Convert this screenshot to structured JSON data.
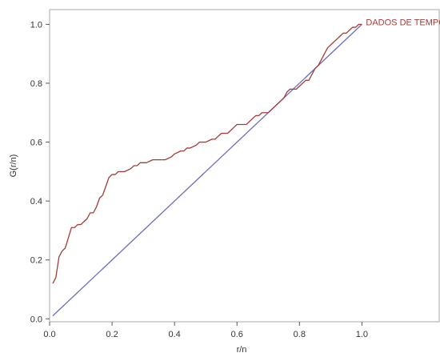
{
  "chart_data": {
    "type": "line",
    "xlabel": "r/n",
    "ylabel": "G(r/n)",
    "xlim": [
      0,
      1.25
    ],
    "ylim": [
      -0.01,
      1.05
    ],
    "x_ticks": [
      0.0,
      0.2,
      0.4,
      0.6,
      0.8,
      1.0
    ],
    "y_ticks": [
      0.0,
      0.2,
      0.4,
      0.6,
      0.8,
      1.0
    ],
    "x_tick_labels": [
      "0.0",
      "0.2",
      "0.4",
      "0.6",
      "0.8",
      "1.0"
    ],
    "y_tick_labels": [
      "0.0",
      "0.2",
      "0.4",
      "0.6",
      "0.8",
      "1.0"
    ],
    "grid": false,
    "colors": {
      "curve": "#a63a36",
      "diagonal": "#6a6fbf",
      "axis": "#555555"
    },
    "series": [
      {
        "name": "DADOS DE TEMPO",
        "x": [
          0.01,
          0.02,
          0.03,
          0.04,
          0.05,
          0.07,
          0.08,
          0.09,
          0.1,
          0.11,
          0.12,
          0.13,
          0.14,
          0.15,
          0.16,
          0.17,
          0.18,
          0.19,
          0.2,
          0.21,
          0.22,
          0.23,
          0.24,
          0.26,
          0.27,
          0.28,
          0.29,
          0.3,
          0.31,
          0.33,
          0.34,
          0.35,
          0.37,
          0.39,
          0.4,
          0.42,
          0.43,
          0.44,
          0.45,
          0.47,
          0.48,
          0.49,
          0.5,
          0.52,
          0.53,
          0.54,
          0.55,
          0.57,
          0.58,
          0.59,
          0.6,
          0.61,
          0.63,
          0.64,
          0.65,
          0.66,
          0.67,
          0.68,
          0.7,
          0.71,
          0.72,
          0.73,
          0.74,
          0.75,
          0.76,
          0.77,
          0.78,
          0.79,
          0.8,
          0.81,
          0.82,
          0.83,
          0.84,
          0.85,
          0.86,
          0.87,
          0.88,
          0.89,
          0.9,
          0.91,
          0.92,
          0.93,
          0.94,
          0.95,
          0.96,
          0.97,
          0.98,
          0.99,
          1.0
        ],
        "values": [
          0.12,
          0.14,
          0.21,
          0.23,
          0.24,
          0.31,
          0.31,
          0.32,
          0.32,
          0.33,
          0.34,
          0.36,
          0.36,
          0.38,
          0.41,
          0.42,
          0.45,
          0.48,
          0.49,
          0.49,
          0.5,
          0.5,
          0.5,
          0.51,
          0.52,
          0.52,
          0.53,
          0.53,
          0.53,
          0.54,
          0.54,
          0.54,
          0.54,
          0.55,
          0.56,
          0.57,
          0.57,
          0.58,
          0.58,
          0.59,
          0.6,
          0.6,
          0.6,
          0.61,
          0.61,
          0.62,
          0.63,
          0.63,
          0.64,
          0.65,
          0.66,
          0.66,
          0.66,
          0.67,
          0.68,
          0.69,
          0.69,
          0.7,
          0.7,
          0.71,
          0.72,
          0.73,
          0.74,
          0.75,
          0.77,
          0.78,
          0.78,
          0.78,
          0.79,
          0.8,
          0.81,
          0.81,
          0.83,
          0.85,
          0.86,
          0.88,
          0.9,
          0.92,
          0.93,
          0.94,
          0.95,
          0.96,
          0.97,
          0.97,
          0.98,
          0.99,
          0.99,
          1.0,
          1.0
        ]
      },
      {
        "x": [
          0.01,
          1.0
        ],
        "values": [
          0.01,
          1.0
        ]
      }
    ]
  }
}
